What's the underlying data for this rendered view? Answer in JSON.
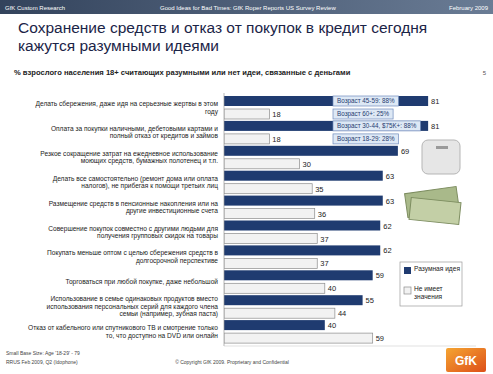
{
  "header": [
    "GfK Custom Research",
    "Good Ideas for Bad Times: GfK Roper Reports US Survey Review",
    "February 2009"
  ],
  "page_number": 5,
  "footer": [
    "Small Base Size: Age '18-29' - 79",
    "RRUS Feb 2009, Q2 (Idophone)",
    "© Copyright GfK 2009. Proprietary and Confidential"
  ],
  "logo": "GfK",
  "chart_data": {
    "type": "bar",
    "orientation": "horizontal",
    "title": "Сохранение средств и отказ от покупок в кредит сегодня кажутся разумными идеями",
    "subtitle": "% взрослого населения 18+ считающих разумными или нет идеи, связанные с деньгами",
    "categories": [
      "Делать сбережения, даже идя на серьезные жертвы в этом году",
      "Оплата за покупки наличными, дебетовыми картами и полный отказ от кредитов и займов",
      "Резкое сокращение затрат на ежедневное использование моющих средств, бумажных полотенец и т.п.",
      "Делать все самостоятельно (ремонт дома или оплата налогов), не прибегая к помощи третьих лиц",
      "Размещение средств в пенсионные накопления или на другие инвестиционные счета",
      "Совершение покупок совместно с другими людьми для получения групповых скидок на товары",
      "Покупать меньше оптом с целью сбережения средств в долгосрочной перспективе",
      "Торговаться при любой покупке, даже небольшой",
      "Использование в семье одинаковых продуктов вместо использования персональных серий для каждого члена семьи (например, зубная паста)",
      "Отказ от кабельного или спутникового ТВ и смотрение только то, что доступно на DVD или онлайн"
    ],
    "series": [
      {
        "name": "Разумная идея",
        "color": "#1f3b70",
        "values": [
          81,
          81,
          69,
          63,
          63,
          62,
          62,
          59,
          55,
          40
        ]
      },
      {
        "name": "Не имеет значения",
        "color": "#f2f2f2",
        "values": [
          18,
          18,
          30,
          35,
          36,
          37,
          37,
          40,
          44,
          59
        ]
      }
    ],
    "xlim": [
      0,
      100
    ],
    "tick_labels": false,
    "data_labels": true,
    "legend": "right",
    "annotations": [
      "Возраст 45-59: 88%",
      "Возраст 60+: 25%",
      "Возраст 30-44, $75K+: 88%",
      "Возраст 18-29: 28%"
    ]
  }
}
